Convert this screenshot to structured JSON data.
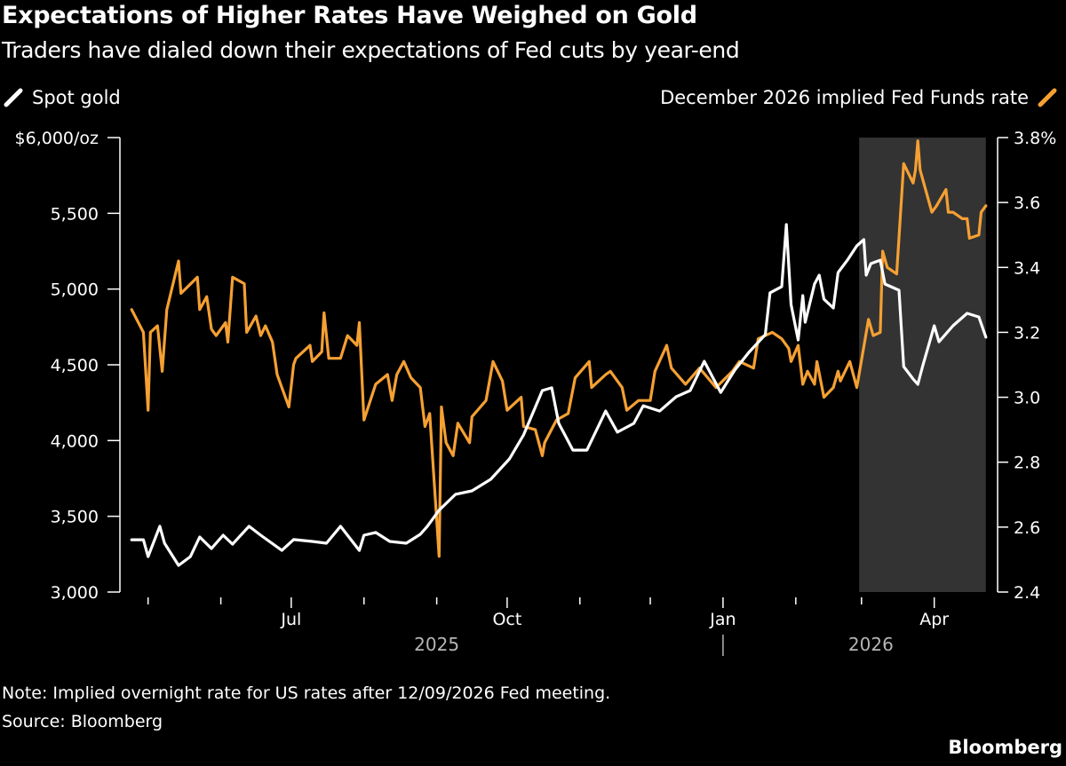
{
  "header": {
    "title": "Expectations of Higher Rates Have Weighed on Gold",
    "subtitle": "Traders have dialed down their expectations of Fed cuts by year-end"
  },
  "footer": {
    "note": "Note: Implied overnight rate for US rates after 12/09/2026 Fed meeting.",
    "source": "Source: Bloomberg",
    "brand": "Bloomberg"
  },
  "colors": {
    "background": "#000000",
    "gold": "#ffffff",
    "rate": "#f5a033",
    "shade": "#333333"
  },
  "chart_data": {
    "type": "line",
    "title": "Expectations of Higher Rates Have Weighed on Gold",
    "subtitle": "Traders have dialed down their expectations of Fed cuts by year-end",
    "xlim": [
      "2025-04-19",
      "2026-04-28"
    ],
    "x_ticks": [
      "2025-05-01",
      "2025-06-01",
      "2025-07-01",
      "2025-08-01",
      "2025-09-01",
      "2025-10-01",
      "2025-11-01",
      "2025-12-01",
      "2026-01-01",
      "2026-02-01",
      "2026-03-01",
      "2026-04-01"
    ],
    "x_tick_labels": [
      {
        "date": "2025-07-01",
        "label": "Jul"
      },
      {
        "date": "2025-10-01",
        "label": "Oct"
      },
      {
        "date": "2026-01-01",
        "label": "Jan"
      },
      {
        "date": "2026-04-01",
        "label": "Apr"
      }
    ],
    "year_labels": [
      {
        "date": "2025-09-01",
        "label": "2025"
      },
      {
        "date": "2026-03-05",
        "label": "2026"
      }
    ],
    "year_divider": "2026-01-01",
    "shaded_range": [
      "2026-02-28",
      "2026-04-23"
    ],
    "left_axis": {
      "unit": "$/oz",
      "ylim": [
        3000,
        6000
      ],
      "ticks": [
        6000,
        5500,
        5000,
        4500,
        4000,
        3500,
        3000
      ],
      "tick_labels": [
        "$6,000/oz",
        "5,500",
        "5,000",
        "4,500",
        "4,000",
        "3,500",
        "3,000"
      ]
    },
    "right_axis": {
      "unit": "%",
      "ylim": [
        2.4,
        3.8
      ],
      "ticks": [
        3.8,
        3.6,
        3.4,
        3.2,
        3.0,
        2.8,
        2.6,
        2.4
      ],
      "tick_labels": [
        "3.8%",
        "3.6",
        "3.4",
        "3.2",
        "3.0",
        "2.8",
        "2.6",
        "2.4"
      ]
    },
    "legend": {
      "left": "Spot gold",
      "right": "December 2026 implied Fed Funds rate"
    },
    "series": [
      {
        "name": "Spot gold",
        "axis": "left",
        "color": "#ffffff",
        "points": [
          [
            "2025-04-24",
            3345
          ],
          [
            "2025-04-29",
            3345
          ],
          [
            "2025-05-01",
            3234
          ],
          [
            "2025-05-06",
            3434
          ],
          [
            "2025-05-08",
            3322
          ],
          [
            "2025-05-14",
            3176
          ],
          [
            "2025-05-19",
            3234
          ],
          [
            "2025-05-23",
            3363
          ],
          [
            "2025-05-28",
            3287
          ],
          [
            "2025-06-02",
            3375
          ],
          [
            "2025-06-06",
            3316
          ],
          [
            "2025-06-13",
            3434
          ],
          [
            "2025-06-18",
            3375
          ],
          [
            "2025-06-27",
            3275
          ],
          [
            "2025-07-02",
            3346
          ],
          [
            "2025-07-10",
            3334
          ],
          [
            "2025-07-16",
            3322
          ],
          [
            "2025-07-22",
            3434
          ],
          [
            "2025-07-30",
            3275
          ],
          [
            "2025-08-01",
            3375
          ],
          [
            "2025-08-06",
            3393
          ],
          [
            "2025-08-12",
            3334
          ],
          [
            "2025-08-19",
            3322
          ],
          [
            "2025-08-25",
            3381
          ],
          [
            "2025-08-28",
            3434
          ],
          [
            "2025-09-02",
            3540
          ],
          [
            "2025-09-09",
            3645
          ],
          [
            "2025-09-16",
            3668
          ],
          [
            "2025-09-24",
            3744
          ],
          [
            "2025-10-02",
            3879
          ],
          [
            "2025-10-08",
            4037
          ],
          [
            "2025-10-16",
            4330
          ],
          [
            "2025-10-20",
            4348
          ],
          [
            "2025-10-23",
            4113
          ],
          [
            "2025-10-29",
            3937
          ],
          [
            "2025-11-04",
            3937
          ],
          [
            "2025-11-12",
            4195
          ],
          [
            "2025-11-17",
            4055
          ],
          [
            "2025-11-24",
            4113
          ],
          [
            "2025-11-28",
            4230
          ],
          [
            "2025-12-05",
            4195
          ],
          [
            "2025-12-12",
            4289
          ],
          [
            "2025-12-18",
            4330
          ],
          [
            "2025-12-24",
            4523
          ],
          [
            "2025-12-31",
            4318
          ],
          [
            "2026-01-06",
            4465
          ],
          [
            "2026-01-12",
            4582
          ],
          [
            "2026-01-19",
            4699
          ],
          [
            "2026-01-21",
            4975
          ],
          [
            "2026-01-26",
            5016
          ],
          [
            "2026-01-28",
            5426
          ],
          [
            "2026-01-30",
            4898
          ],
          [
            "2026-02-02",
            4664
          ],
          [
            "2026-02-04",
            4957
          ],
          [
            "2026-02-05",
            4781
          ],
          [
            "2026-02-09",
            5033
          ],
          [
            "2026-02-11",
            5092
          ],
          [
            "2026-02-13",
            4933
          ],
          [
            "2026-02-17",
            4875
          ],
          [
            "2026-02-19",
            5109
          ],
          [
            "2026-02-23",
            5191
          ],
          [
            "2026-02-27",
            5285
          ],
          [
            "2026-03-02",
            5326
          ],
          [
            "2026-03-03",
            5092
          ],
          [
            "2026-03-05",
            5168
          ],
          [
            "2026-03-09",
            5191
          ],
          [
            "2026-03-11",
            5033
          ],
          [
            "2026-03-17",
            4992
          ],
          [
            "2026-03-19",
            4488
          ],
          [
            "2026-03-23",
            4406
          ],
          [
            "2026-03-25",
            4371
          ],
          [
            "2026-03-27",
            4488
          ],
          [
            "2026-04-01",
            4758
          ],
          [
            "2026-04-03",
            4652
          ],
          [
            "2026-04-09",
            4758
          ],
          [
            "2026-04-15",
            4840
          ],
          [
            "2026-04-20",
            4816
          ],
          [
            "2026-04-23",
            4682
          ]
        ]
      },
      {
        "name": "December 2026 implied Fed Funds rate",
        "axis": "right",
        "color": "#f5a033",
        "points": [
          [
            "2025-04-24",
            3.27
          ],
          [
            "2025-04-29",
            3.2
          ],
          [
            "2025-05-01",
            2.96
          ],
          [
            "2025-05-02",
            3.2
          ],
          [
            "2025-05-05",
            3.22
          ],
          [
            "2025-05-07",
            3.08
          ],
          [
            "2025-05-09",
            3.27
          ],
          [
            "2025-05-14",
            3.42
          ],
          [
            "2025-05-15",
            3.32
          ],
          [
            "2025-05-22",
            3.37
          ],
          [
            "2025-05-23",
            3.27
          ],
          [
            "2025-05-26",
            3.31
          ],
          [
            "2025-05-28",
            3.21
          ],
          [
            "2025-05-30",
            3.19
          ],
          [
            "2025-06-03",
            3.23
          ],
          [
            "2025-06-04",
            3.17
          ],
          [
            "2025-06-06",
            3.37
          ],
          [
            "2025-06-11",
            3.35
          ],
          [
            "2025-06-12",
            3.2
          ],
          [
            "2025-06-16",
            3.25
          ],
          [
            "2025-06-18",
            3.19
          ],
          [
            "2025-06-20",
            3.22
          ],
          [
            "2025-06-23",
            3.17
          ],
          [
            "2025-06-25",
            3.07
          ],
          [
            "2025-06-30",
            2.97
          ],
          [
            "2025-07-02",
            3.1
          ],
          [
            "2025-07-03",
            3.12
          ],
          [
            "2025-07-09",
            3.16
          ],
          [
            "2025-07-10",
            3.11
          ],
          [
            "2025-07-14",
            3.14
          ],
          [
            "2025-07-15",
            3.26
          ],
          [
            "2025-07-17",
            3.12
          ],
          [
            "2025-07-22",
            3.12
          ],
          [
            "2025-07-25",
            3.19
          ],
          [
            "2025-07-29",
            3.16
          ],
          [
            "2025-07-30",
            3.23
          ],
          [
            "2025-08-01",
            2.93
          ],
          [
            "2025-08-06",
            3.04
          ],
          [
            "2025-08-11",
            3.07
          ],
          [
            "2025-08-13",
            2.99
          ],
          [
            "2025-08-15",
            3.07
          ],
          [
            "2025-08-18",
            3.11
          ],
          [
            "2025-08-21",
            3.06
          ],
          [
            "2025-08-25",
            3.03
          ],
          [
            "2025-08-27",
            2.91
          ],
          [
            "2025-08-29",
            2.95
          ],
          [
            "2025-09-02",
            2.51
          ],
          [
            "2025-09-03",
            2.97
          ],
          [
            "2025-09-05",
            2.86
          ],
          [
            "2025-09-08",
            2.82
          ],
          [
            "2025-09-10",
            2.92
          ],
          [
            "2025-09-15",
            2.86
          ],
          [
            "2025-09-16",
            2.94
          ],
          [
            "2025-09-22",
            2.99
          ],
          [
            "2025-09-25",
            3.11
          ],
          [
            "2025-09-29",
            3.05
          ],
          [
            "2025-10-01",
            2.96
          ],
          [
            "2025-10-07",
            3.0
          ],
          [
            "2025-10-08",
            2.91
          ],
          [
            "2025-10-13",
            2.9
          ],
          [
            "2025-10-16",
            2.82
          ],
          [
            "2025-10-17",
            2.86
          ],
          [
            "2025-10-22",
            2.93
          ],
          [
            "2025-10-27",
            2.95
          ],
          [
            "2025-10-30",
            3.06
          ],
          [
            "2025-11-05",
            3.11
          ],
          [
            "2025-11-06",
            3.03
          ],
          [
            "2025-11-12",
            3.07
          ],
          [
            "2025-11-14",
            3.08
          ],
          [
            "2025-11-19",
            3.03
          ],
          [
            "2025-11-21",
            2.96
          ],
          [
            "2025-11-26",
            2.99
          ],
          [
            "2025-12-01",
            2.99
          ],
          [
            "2025-12-03",
            3.08
          ],
          [
            "2025-12-08",
            3.16
          ],
          [
            "2025-12-10",
            3.09
          ],
          [
            "2025-12-16",
            3.04
          ],
          [
            "2025-12-22",
            3.09
          ],
          [
            "2025-12-29",
            3.03
          ],
          [
            "2026-01-05",
            3.08
          ],
          [
            "2026-01-08",
            3.11
          ],
          [
            "2026-01-14",
            3.09
          ],
          [
            "2026-01-16",
            3.18
          ],
          [
            "2026-01-22",
            3.2
          ],
          [
            "2026-01-26",
            3.18
          ],
          [
            "2026-01-29",
            3.15
          ],
          [
            "2026-01-30",
            3.11
          ],
          [
            "2026-02-02",
            3.16
          ],
          [
            "2026-02-04",
            3.04
          ],
          [
            "2026-02-06",
            3.08
          ],
          [
            "2026-02-09",
            3.04
          ],
          [
            "2026-02-10",
            3.11
          ],
          [
            "2026-02-13",
            3.0
          ],
          [
            "2026-02-17",
            3.03
          ],
          [
            "2026-02-19",
            3.08
          ],
          [
            "2026-02-20",
            3.05
          ],
          [
            "2026-02-24",
            3.11
          ],
          [
            "2026-02-27",
            3.03
          ],
          [
            "2026-03-04",
            3.24
          ],
          [
            "2026-03-06",
            3.19
          ],
          [
            "2026-03-09",
            3.2
          ],
          [
            "2026-03-10",
            3.45
          ],
          [
            "2026-03-12",
            3.4
          ],
          [
            "2026-03-16",
            3.38
          ],
          [
            "2026-03-19",
            3.72
          ],
          [
            "2026-03-23",
            3.66
          ],
          [
            "2026-03-24",
            3.7
          ],
          [
            "2026-03-25",
            3.79
          ],
          [
            "2026-03-26",
            3.7
          ],
          [
            "2026-03-31",
            3.57
          ],
          [
            "2026-04-02",
            3.59
          ],
          [
            "2026-04-06",
            3.64
          ],
          [
            "2026-04-07",
            3.57
          ],
          [
            "2026-04-09",
            3.57
          ],
          [
            "2026-04-13",
            3.55
          ],
          [
            "2026-04-15",
            3.55
          ],
          [
            "2026-04-16",
            3.49
          ],
          [
            "2026-04-20",
            3.5
          ],
          [
            "2026-04-21",
            3.57
          ],
          [
            "2026-04-23",
            3.59
          ]
        ]
      }
    ]
  }
}
